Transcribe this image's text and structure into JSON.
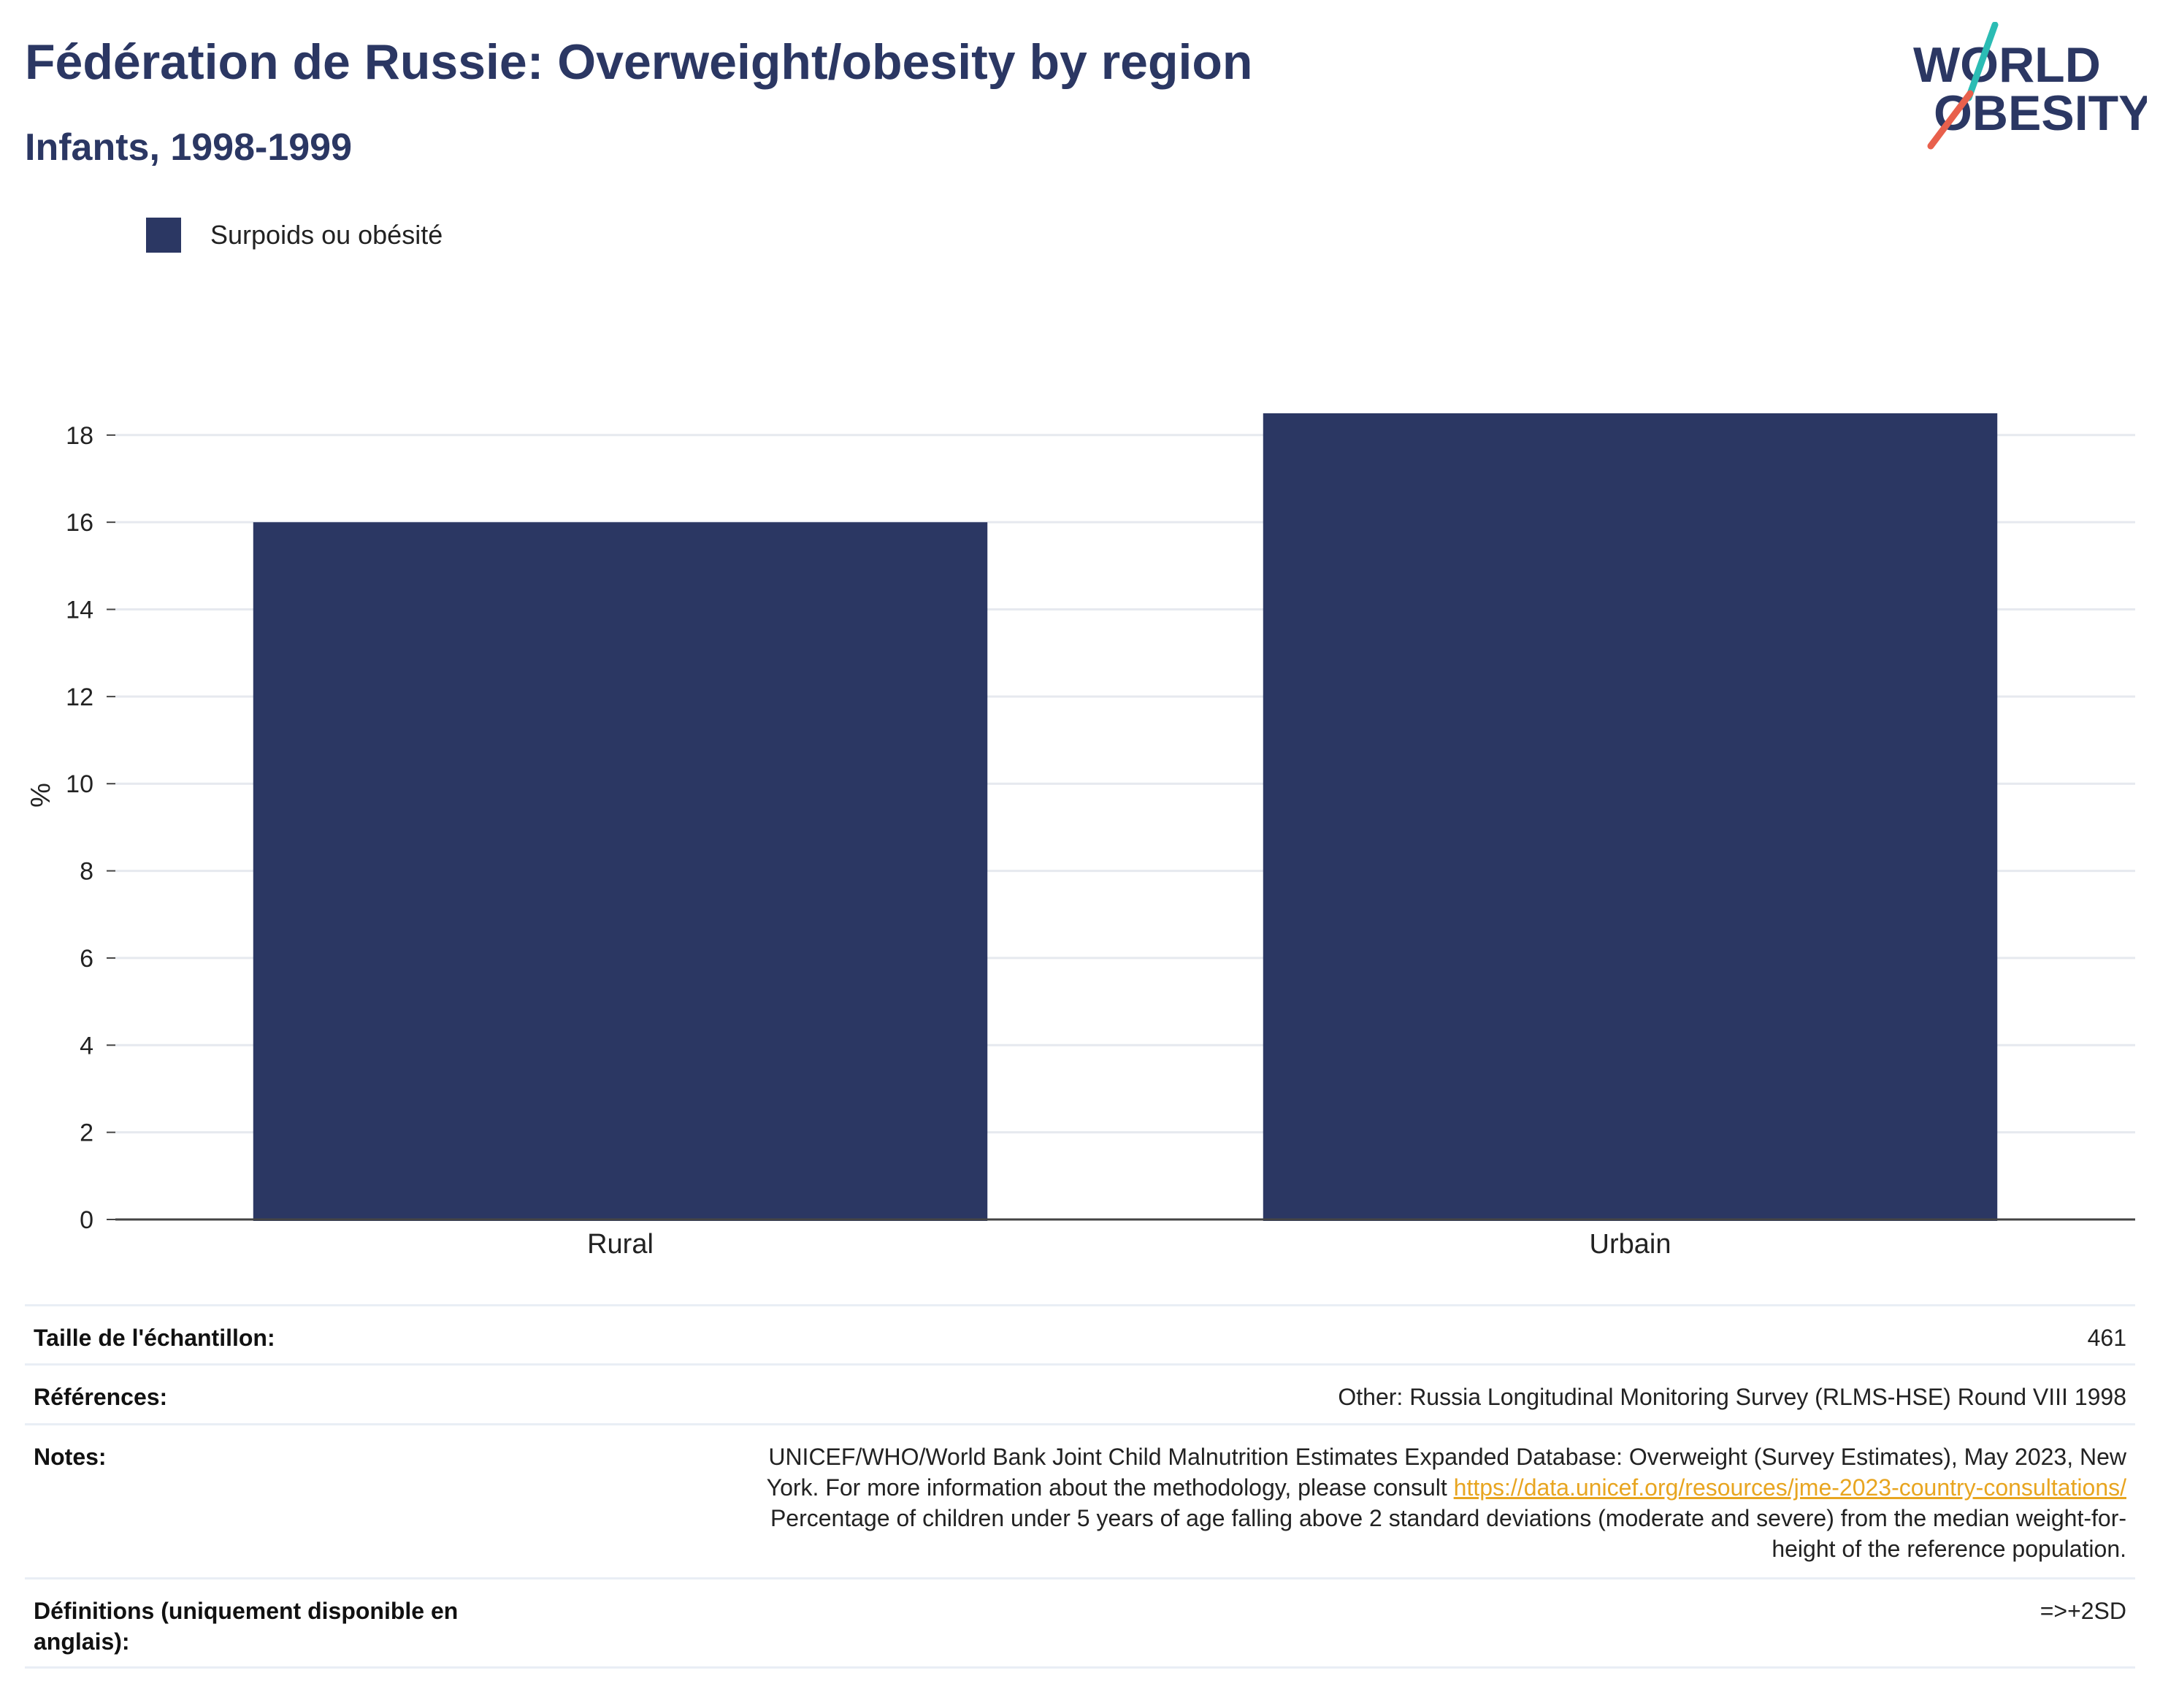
{
  "header": {
    "title": "Fédération de Russie: Overweight/obesity by region",
    "subtitle": "Infants, 1998-1999"
  },
  "logo": {
    "line1": "WORLD",
    "line2": "OBESITY",
    "accent_colors": [
      "#2bbcb4",
      "#e8604c"
    ]
  },
  "legend": {
    "label": "Surpoids ou obésité",
    "color": "#2b3763"
  },
  "chart_data": {
    "type": "bar",
    "categories": [
      "Rural",
      "Urbain"
    ],
    "series": [
      {
        "name": "Surpoids ou obésité",
        "values": [
          16.0,
          18.5
        ],
        "color": "#2b3763"
      }
    ],
    "ylabel": "%",
    "xlabel": "",
    "ylim": [
      0,
      18.6
    ],
    "yticks": [
      0,
      2,
      4,
      6,
      8,
      10,
      12,
      14,
      16,
      18
    ],
    "grid": true,
    "legend_position": "top-left"
  },
  "info_table": {
    "sample_label": "Taille de l'échantillon:",
    "sample_value": "461",
    "references_label": "Références:",
    "references_value": "Other: Russia Longitudinal Monitoring Survey (RLMS-HSE) Round VIII 1998",
    "notes_label": "Notes:",
    "notes_line1": "UNICEF/WHO/World Bank Joint Child Malnutrition Estimates Expanded Database: Overweight (Survey Estimates), May 2023, New",
    "notes_line2_prefix": "York. For more information about the methodology, please consult ",
    "notes_link": "https://data.unicef.org/resources/jme-2023-country-consultations/",
    "notes_line3": "Percentage of children under 5 years of age falling above 2 standard deviations (moderate and severe) from the median weight-for-",
    "notes_line4": "height of the reference population.",
    "definitions_label": "Définitions (uniquement disponible en anglais):",
    "definitions_value": "=>+2SD"
  }
}
